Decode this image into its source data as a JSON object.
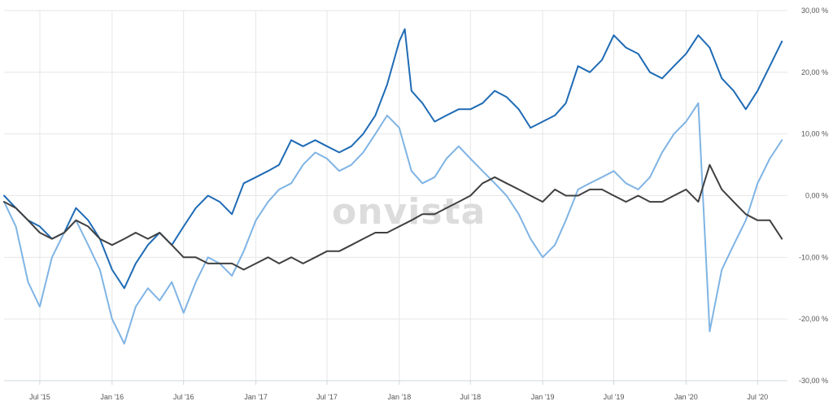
{
  "watermark": "onvista",
  "chart_data": {
    "type": "line",
    "y_unit": "%",
    "ylim": [
      -30,
      30
    ],
    "y_ticks": [
      {
        "value": 30,
        "label": "30,00 %"
      },
      {
        "value": 20,
        "label": "20,00 %"
      },
      {
        "value": 10,
        "label": "10,00 %"
      },
      {
        "value": 0,
        "label": "0,00 %"
      },
      {
        "value": -10,
        "label": "-10,00 %"
      },
      {
        "value": -20,
        "label": "-20,00 %"
      },
      {
        "value": -30,
        "label": "-30,00 %"
      }
    ],
    "xlim": [
      "2015-04-01",
      "2020-09-15"
    ],
    "x_ticks": [
      {
        "value": "2015-07-01",
        "label": "Jul '15"
      },
      {
        "value": "2016-01-01",
        "label": "Jan '16"
      },
      {
        "value": "2016-07-01",
        "label": "Jul '16"
      },
      {
        "value": "2017-01-01",
        "label": "Jan '17"
      },
      {
        "value": "2017-07-01",
        "label": "Jul '17"
      },
      {
        "value": "2018-01-01",
        "label": "Jan '18"
      },
      {
        "value": "2018-07-01",
        "label": "Jul '18"
      },
      {
        "value": "2019-01-01",
        "label": "Jan '19"
      },
      {
        "value": "2019-07-01",
        "label": "Jul '19"
      },
      {
        "value": "2020-01-01",
        "label": "Jan '20"
      },
      {
        "value": "2020-07-01",
        "label": "Jul '20"
      }
    ],
    "grid": true,
    "colors": {
      "series_dark_blue": "#1f6bb5",
      "series_light_blue": "#7fb4e4",
      "series_dark_gray": "#404040"
    },
    "series": [
      {
        "color": "#1f6bb5",
        "points": [
          [
            "2015-04-01",
            0
          ],
          [
            "2015-05-01",
            -2
          ],
          [
            "2015-06-01",
            -4
          ],
          [
            "2015-07-01",
            -5
          ],
          [
            "2015-08-01",
            -7
          ],
          [
            "2015-09-01",
            -6
          ],
          [
            "2015-10-01",
            -2
          ],
          [
            "2015-11-01",
            -4
          ],
          [
            "2015-12-01",
            -7
          ],
          [
            "2016-01-01",
            -12
          ],
          [
            "2016-02-01",
            -15
          ],
          [
            "2016-03-01",
            -11
          ],
          [
            "2016-04-01",
            -8
          ],
          [
            "2016-05-01",
            -6
          ],
          [
            "2016-06-01",
            -8
          ],
          [
            "2016-07-01",
            -5
          ],
          [
            "2016-08-01",
            -2
          ],
          [
            "2016-09-01",
            0
          ],
          [
            "2016-10-01",
            -1
          ],
          [
            "2016-11-01",
            -3
          ],
          [
            "2016-12-01",
            2
          ],
          [
            "2017-01-01",
            3
          ],
          [
            "2017-02-01",
            4
          ],
          [
            "2017-03-01",
            5
          ],
          [
            "2017-04-01",
            9
          ],
          [
            "2017-05-01",
            8
          ],
          [
            "2017-06-01",
            9
          ],
          [
            "2017-07-01",
            8
          ],
          [
            "2017-08-01",
            7
          ],
          [
            "2017-09-01",
            8
          ],
          [
            "2017-10-01",
            10
          ],
          [
            "2017-11-01",
            13
          ],
          [
            "2017-12-01",
            18
          ],
          [
            "2018-01-01",
            25
          ],
          [
            "2018-01-15",
            27
          ],
          [
            "2018-02-01",
            17
          ],
          [
            "2018-03-01",
            15
          ],
          [
            "2018-04-01",
            12
          ],
          [
            "2018-05-01",
            13
          ],
          [
            "2018-06-01",
            14
          ],
          [
            "2018-07-01",
            14
          ],
          [
            "2018-08-01",
            15
          ],
          [
            "2018-09-01",
            17
          ],
          [
            "2018-10-01",
            16
          ],
          [
            "2018-11-01",
            14
          ],
          [
            "2018-12-01",
            11
          ],
          [
            "2019-01-01",
            12
          ],
          [
            "2019-02-01",
            13
          ],
          [
            "2019-03-01",
            15
          ],
          [
            "2019-04-01",
            21
          ],
          [
            "2019-05-01",
            20
          ],
          [
            "2019-06-01",
            22
          ],
          [
            "2019-07-01",
            26
          ],
          [
            "2019-08-01",
            24
          ],
          [
            "2019-09-01",
            23
          ],
          [
            "2019-10-01",
            20
          ],
          [
            "2019-11-01",
            19
          ],
          [
            "2019-12-01",
            21
          ],
          [
            "2020-01-01",
            23
          ],
          [
            "2020-02-01",
            26
          ],
          [
            "2020-03-01",
            24
          ],
          [
            "2020-04-01",
            19
          ],
          [
            "2020-05-01",
            17
          ],
          [
            "2020-06-01",
            14
          ],
          [
            "2020-07-01",
            17
          ],
          [
            "2020-08-01",
            21
          ],
          [
            "2020-09-01",
            25
          ]
        ]
      },
      {
        "color": "#7fb4e4",
        "points": [
          [
            "2015-04-01",
            -1
          ],
          [
            "2015-05-01",
            -5
          ],
          [
            "2015-06-01",
            -14
          ],
          [
            "2015-07-01",
            -18
          ],
          [
            "2015-08-01",
            -10
          ],
          [
            "2015-09-01",
            -6
          ],
          [
            "2015-10-01",
            -4
          ],
          [
            "2015-11-01",
            -8
          ],
          [
            "2015-12-01",
            -12
          ],
          [
            "2016-01-01",
            -20
          ],
          [
            "2016-02-01",
            -24
          ],
          [
            "2016-03-01",
            -18
          ],
          [
            "2016-04-01",
            -15
          ],
          [
            "2016-05-01",
            -17
          ],
          [
            "2016-06-01",
            -14
          ],
          [
            "2016-07-01",
            -19
          ],
          [
            "2016-08-01",
            -14
          ],
          [
            "2016-09-01",
            -10
          ],
          [
            "2016-10-01",
            -11
          ],
          [
            "2016-11-01",
            -13
          ],
          [
            "2016-12-01",
            -9
          ],
          [
            "2017-01-01",
            -4
          ],
          [
            "2017-02-01",
            -1
          ],
          [
            "2017-03-01",
            1
          ],
          [
            "2017-04-01",
            2
          ],
          [
            "2017-05-01",
            5
          ],
          [
            "2017-06-01",
            7
          ],
          [
            "2017-07-01",
            6
          ],
          [
            "2017-08-01",
            4
          ],
          [
            "2017-09-01",
            5
          ],
          [
            "2017-10-01",
            7
          ],
          [
            "2017-11-01",
            10
          ],
          [
            "2017-12-01",
            13
          ],
          [
            "2018-01-01",
            11
          ],
          [
            "2018-02-01",
            4
          ],
          [
            "2018-03-01",
            2
          ],
          [
            "2018-04-01",
            3
          ],
          [
            "2018-05-01",
            6
          ],
          [
            "2018-06-01",
            8
          ],
          [
            "2018-07-01",
            6
          ],
          [
            "2018-08-01",
            4
          ],
          [
            "2018-09-01",
            2
          ],
          [
            "2018-10-01",
            0
          ],
          [
            "2018-11-01",
            -3
          ],
          [
            "2018-12-01",
            -7
          ],
          [
            "2019-01-01",
            -10
          ],
          [
            "2019-02-01",
            -8
          ],
          [
            "2019-03-01",
            -4
          ],
          [
            "2019-04-01",
            1
          ],
          [
            "2019-05-01",
            2
          ],
          [
            "2019-06-01",
            3
          ],
          [
            "2019-07-01",
            4
          ],
          [
            "2019-08-01",
            2
          ],
          [
            "2019-09-01",
            1
          ],
          [
            "2019-10-01",
            3
          ],
          [
            "2019-11-01",
            7
          ],
          [
            "2019-12-01",
            10
          ],
          [
            "2020-01-01",
            12
          ],
          [
            "2020-02-01",
            15
          ],
          [
            "2020-03-01",
            -22
          ],
          [
            "2020-04-01",
            -12
          ],
          [
            "2020-05-01",
            -8
          ],
          [
            "2020-06-01",
            -4
          ],
          [
            "2020-07-01",
            2
          ],
          [
            "2020-08-01",
            6
          ],
          [
            "2020-09-01",
            9
          ]
        ]
      },
      {
        "color": "#404040",
        "points": [
          [
            "2015-04-01",
            -1
          ],
          [
            "2015-05-01",
            -2
          ],
          [
            "2015-06-01",
            -4
          ],
          [
            "2015-07-01",
            -6
          ],
          [
            "2015-08-01",
            -7
          ],
          [
            "2015-09-01",
            -6
          ],
          [
            "2015-10-01",
            -4
          ],
          [
            "2015-11-01",
            -5
          ],
          [
            "2015-12-01",
            -7
          ],
          [
            "2016-01-01",
            -8
          ],
          [
            "2016-02-01",
            -7
          ],
          [
            "2016-03-01",
            -6
          ],
          [
            "2016-04-01",
            -7
          ],
          [
            "2016-05-01",
            -6
          ],
          [
            "2016-06-01",
            -8
          ],
          [
            "2016-07-01",
            -10
          ],
          [
            "2016-08-01",
            -10
          ],
          [
            "2016-09-01",
            -11
          ],
          [
            "2016-10-01",
            -11
          ],
          [
            "2016-11-01",
            -11
          ],
          [
            "2016-12-01",
            -12
          ],
          [
            "2017-01-01",
            -11
          ],
          [
            "2017-02-01",
            -10
          ],
          [
            "2017-03-01",
            -11
          ],
          [
            "2017-04-01",
            -10
          ],
          [
            "2017-05-01",
            -11
          ],
          [
            "2017-06-01",
            -10
          ],
          [
            "2017-07-01",
            -9
          ],
          [
            "2017-08-01",
            -9
          ],
          [
            "2017-09-01",
            -8
          ],
          [
            "2017-10-01",
            -7
          ],
          [
            "2017-11-01",
            -6
          ],
          [
            "2017-12-01",
            -6
          ],
          [
            "2018-01-01",
            -5
          ],
          [
            "2018-02-01",
            -4
          ],
          [
            "2018-03-01",
            -3
          ],
          [
            "2018-04-01",
            -3
          ],
          [
            "2018-05-01",
            -2
          ],
          [
            "2018-06-01",
            -1
          ],
          [
            "2018-07-01",
            0
          ],
          [
            "2018-08-01",
            2
          ],
          [
            "2018-09-01",
            3
          ],
          [
            "2018-10-01",
            2
          ],
          [
            "2018-11-01",
            1
          ],
          [
            "2018-12-01",
            0
          ],
          [
            "2019-01-01",
            -1
          ],
          [
            "2019-02-01",
            1
          ],
          [
            "2019-03-01",
            0
          ],
          [
            "2019-04-01",
            0
          ],
          [
            "2019-05-01",
            1
          ],
          [
            "2019-06-01",
            1
          ],
          [
            "2019-07-01",
            0
          ],
          [
            "2019-08-01",
            -1
          ],
          [
            "2019-09-01",
            0
          ],
          [
            "2019-10-01",
            -1
          ],
          [
            "2019-11-01",
            -1
          ],
          [
            "2019-12-01",
            0
          ],
          [
            "2020-01-01",
            1
          ],
          [
            "2020-02-01",
            -1
          ],
          [
            "2020-03-01",
            5
          ],
          [
            "2020-04-01",
            1
          ],
          [
            "2020-05-01",
            -1
          ],
          [
            "2020-06-01",
            -3
          ],
          [
            "2020-07-01",
            -4
          ],
          [
            "2020-08-01",
            -4
          ],
          [
            "2020-09-01",
            -7
          ]
        ]
      }
    ]
  }
}
